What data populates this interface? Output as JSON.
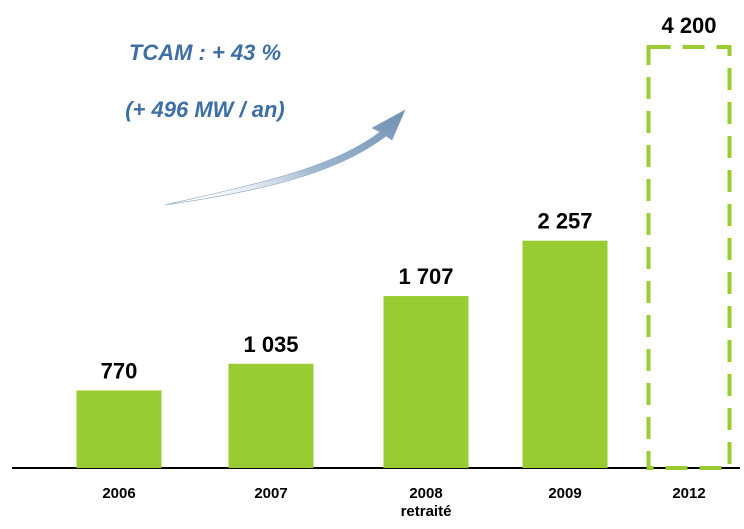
{
  "chart_data": {
    "type": "bar",
    "annotations": [
      "TCAM : + 43 %",
      "(+ 496 MW / an)"
    ],
    "categories": [
      "2006",
      "2007",
      "2008 retraité",
      "2009",
      "2012"
    ],
    "values": [
      770,
      1035,
      1707,
      2257,
      4200
    ],
    "value_labels": [
      "770",
      "1 035",
      "1 707",
      "2 257",
      "4 200"
    ],
    "dashed": [
      false,
      false,
      false,
      false,
      true
    ],
    "color": "#99cc33"
  }
}
